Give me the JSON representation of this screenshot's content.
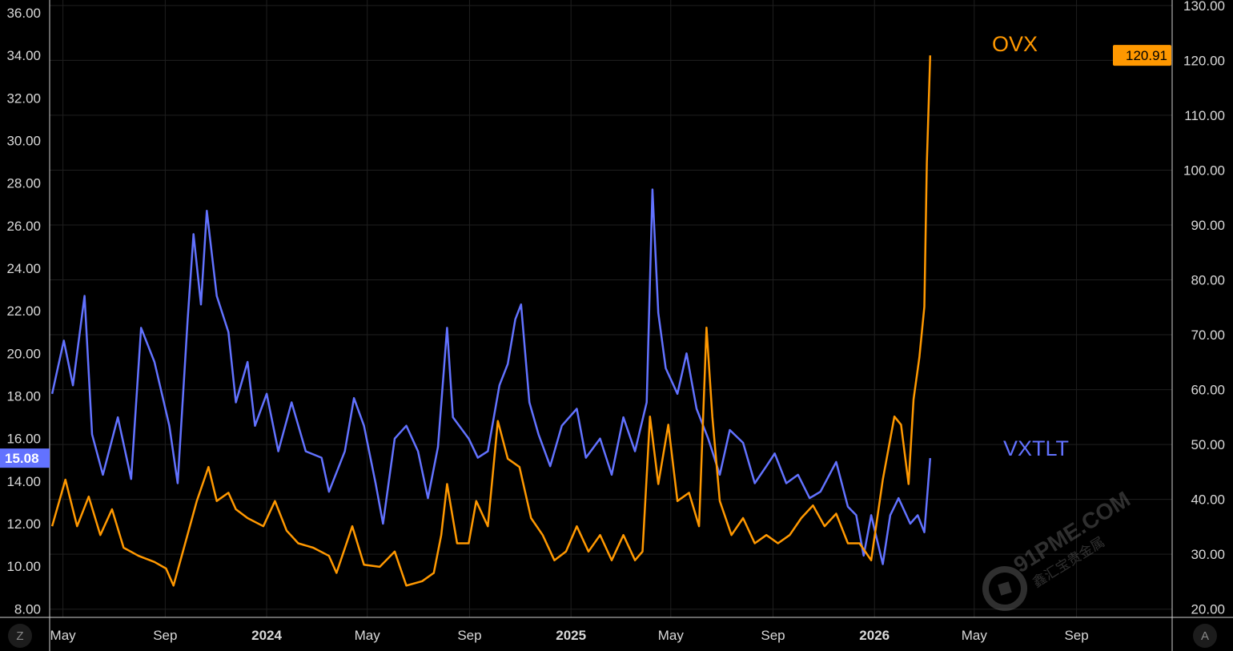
{
  "chart_data": {
    "type": "line",
    "title": "",
    "x_axis": {
      "type": "date",
      "tick_labels": [
        {
          "date": "2023-05-01",
          "label": "May"
        },
        {
          "date": "2023-09-01",
          "label": "Sep"
        },
        {
          "date": "2024-01-01",
          "label": "2024"
        },
        {
          "date": "2024-05-01",
          "label": "May"
        },
        {
          "date": "2024-09-01",
          "label": "Sep"
        },
        {
          "date": "2025-01-01",
          "label": "2025"
        },
        {
          "date": "2025-05-01",
          "label": "May"
        },
        {
          "date": "2025-09-01",
          "label": "Sep"
        },
        {
          "date": "2026-01-01",
          "label": "2026"
        },
        {
          "date": "2026-05-01",
          "label": "May"
        },
        {
          "date": "2026-09-01",
          "label": "Sep"
        }
      ],
      "range": [
        "2023-04-15",
        "2026-12-25"
      ]
    },
    "y_left": {
      "range": [
        7.6,
        36.6
      ],
      "ticks": [
        "8.00",
        "10.00",
        "12.00",
        "14.00",
        "16.00",
        "18.00",
        "20.00",
        "22.00",
        "24.00",
        "26.00",
        "28.00",
        "30.00",
        "32.00",
        "34.00",
        "36.00"
      ]
    },
    "y_right": {
      "range": [
        18.5,
        131
      ],
      "ticks": [
        "20.00",
        "30.00",
        "40.00",
        "50.00",
        "60.00",
        "70.00",
        "80.00",
        "90.00",
        "100.00",
        "110.00",
        "120.00",
        "130.00"
      ]
    },
    "grid": true,
    "series": [
      {
        "name": "VXTLT",
        "axis": "left",
        "color": "#6272ff",
        "last_value": "15.08",
        "points": [
          [
            "2023-04-18",
            18.1
          ],
          [
            "2023-05-02",
            20.6
          ],
          [
            "2023-05-13",
            18.5
          ],
          [
            "2023-05-27",
            22.7
          ],
          [
            "2023-06-05",
            16.2
          ],
          [
            "2023-06-18",
            14.3
          ],
          [
            "2023-07-06",
            17.0
          ],
          [
            "2023-07-22",
            14.1
          ],
          [
            "2023-08-03",
            21.2
          ],
          [
            "2023-08-19",
            19.6
          ],
          [
            "2023-09-06",
            16.6
          ],
          [
            "2023-09-16",
            13.9
          ],
          [
            "2023-09-28",
            21.6
          ],
          [
            "2023-10-05",
            25.6
          ],
          [
            "2023-10-14",
            22.3
          ],
          [
            "2023-10-21",
            26.7
          ],
          [
            "2023-11-02",
            22.7
          ],
          [
            "2023-11-16",
            21.0
          ],
          [
            "2023-11-25",
            17.7
          ],
          [
            "2023-12-09",
            19.6
          ],
          [
            "2023-12-18",
            16.6
          ],
          [
            "2024-01-01",
            18.1
          ],
          [
            "2024-01-15",
            15.4
          ],
          [
            "2024-01-31",
            17.7
          ],
          [
            "2024-02-17",
            15.4
          ],
          [
            "2024-03-07",
            15.1
          ],
          [
            "2024-03-16",
            13.5
          ],
          [
            "2024-04-04",
            15.4
          ],
          [
            "2024-04-15",
            17.9
          ],
          [
            "2024-04-27",
            16.6
          ],
          [
            "2024-05-11",
            13.9
          ],
          [
            "2024-05-20",
            12.0
          ],
          [
            "2024-06-03",
            16.0
          ],
          [
            "2024-06-17",
            16.6
          ],
          [
            "2024-07-01",
            15.4
          ],
          [
            "2024-07-13",
            13.2
          ],
          [
            "2024-07-25",
            15.6
          ],
          [
            "2024-08-05",
            21.2
          ],
          [
            "2024-08-12",
            17.0
          ],
          [
            "2024-08-31",
            16.0
          ],
          [
            "2024-09-11",
            15.1
          ],
          [
            "2024-09-23",
            15.4
          ],
          [
            "2024-10-07",
            18.5
          ],
          [
            "2024-10-17",
            19.5
          ],
          [
            "2024-10-26",
            21.6
          ],
          [
            "2024-11-02",
            22.3
          ],
          [
            "2024-11-12",
            17.7
          ],
          [
            "2024-11-23",
            16.2
          ],
          [
            "2024-12-07",
            14.7
          ],
          [
            "2024-12-21",
            16.6
          ],
          [
            "2025-01-08",
            17.4
          ],
          [
            "2025-01-19",
            15.1
          ],
          [
            "2025-02-05",
            16.0
          ],
          [
            "2025-02-19",
            14.3
          ],
          [
            "2025-03-05",
            17.0
          ],
          [
            "2025-03-19",
            15.4
          ],
          [
            "2025-04-02",
            17.7
          ],
          [
            "2025-04-09",
            27.7
          ],
          [
            "2025-04-16",
            21.9
          ],
          [
            "2025-04-25",
            19.3
          ],
          [
            "2025-05-09",
            18.1
          ],
          [
            "2025-05-20",
            20.0
          ],
          [
            "2025-06-01",
            17.4
          ],
          [
            "2025-06-15",
            16.0
          ],
          [
            "2025-06-29",
            14.3
          ],
          [
            "2025-07-11",
            16.4
          ],
          [
            "2025-07-27",
            15.8
          ],
          [
            "2025-08-10",
            13.9
          ],
          [
            "2025-08-24",
            14.7
          ],
          [
            "2025-09-03",
            15.3
          ],
          [
            "2025-09-17",
            13.9
          ],
          [
            "2025-10-01",
            14.3
          ],
          [
            "2025-10-15",
            13.2
          ],
          [
            "2025-10-28",
            13.5
          ],
          [
            "2025-11-16",
            14.9
          ],
          [
            "2025-11-30",
            12.8
          ],
          [
            "2025-12-10",
            12.4
          ],
          [
            "2025-12-19",
            10.5
          ],
          [
            "2025-12-28",
            12.4
          ],
          [
            "2026-01-11",
            10.1
          ],
          [
            "2026-01-20",
            12.4
          ],
          [
            "2026-01-30",
            13.2
          ],
          [
            "2026-02-13",
            12.0
          ],
          [
            "2026-02-22",
            12.4
          ],
          [
            "2026-03-02",
            11.6
          ],
          [
            "2026-03-09",
            15.08
          ]
        ]
      },
      {
        "name": "OVX",
        "axis": "right",
        "color": "#ff9800",
        "last_value": "120.91",
        "points": [
          [
            "2023-04-18",
            35.1
          ],
          [
            "2023-05-04",
            43.6
          ],
          [
            "2023-05-18",
            35.1
          ],
          [
            "2023-06-01",
            40.5
          ],
          [
            "2023-06-15",
            33.5
          ],
          [
            "2023-06-29",
            38.2
          ],
          [
            "2023-07-13",
            31.2
          ],
          [
            "2023-07-31",
            29.7
          ],
          [
            "2023-08-19",
            28.6
          ],
          [
            "2023-09-02",
            27.4
          ],
          [
            "2023-09-11",
            24.3
          ],
          [
            "2023-09-25",
            32.0
          ],
          [
            "2023-10-09",
            39.7
          ],
          [
            "2023-10-23",
            45.9
          ],
          [
            "2023-11-02",
            39.7
          ],
          [
            "2023-11-16",
            41.2
          ],
          [
            "2023-11-25",
            38.2
          ],
          [
            "2023-12-09",
            36.6
          ],
          [
            "2023-12-28",
            35.1
          ],
          [
            "2024-01-11",
            39.7
          ],
          [
            "2024-01-25",
            34.3
          ],
          [
            "2024-02-08",
            32.0
          ],
          [
            "2024-02-26",
            31.2
          ],
          [
            "2024-03-16",
            29.7
          ],
          [
            "2024-03-25",
            26.6
          ],
          [
            "2024-04-13",
            35.1
          ],
          [
            "2024-04-27",
            28.1
          ],
          [
            "2024-05-16",
            27.7
          ],
          [
            "2024-06-03",
            30.5
          ],
          [
            "2024-06-17",
            24.3
          ],
          [
            "2024-07-06",
            25.1
          ],
          [
            "2024-07-20",
            26.6
          ],
          [
            "2024-07-29",
            33.5
          ],
          [
            "2024-08-05",
            42.8
          ],
          [
            "2024-08-17",
            32.0
          ],
          [
            "2024-08-31",
            32.0
          ],
          [
            "2024-09-09",
            39.7
          ],
          [
            "2024-09-23",
            35.1
          ],
          [
            "2024-10-05",
            54.3
          ],
          [
            "2024-10-17",
            47.4
          ],
          [
            "2024-10-31",
            45.9
          ],
          [
            "2024-11-14",
            36.6
          ],
          [
            "2024-11-28",
            33.5
          ],
          [
            "2024-12-12",
            28.9
          ],
          [
            "2024-12-26",
            30.5
          ],
          [
            "2025-01-08",
            35.1
          ],
          [
            "2025-01-22",
            30.5
          ],
          [
            "2025-02-05",
            33.5
          ],
          [
            "2025-02-19",
            28.9
          ],
          [
            "2025-03-05",
            33.5
          ],
          [
            "2025-03-19",
            28.9
          ],
          [
            "2025-03-28",
            30.5
          ],
          [
            "2025-04-06",
            55.1
          ],
          [
            "2025-04-16",
            42.8
          ],
          [
            "2025-04-28",
            53.6
          ],
          [
            "2025-05-09",
            39.7
          ],
          [
            "2025-05-23",
            41.2
          ],
          [
            "2025-06-04",
            35.1
          ],
          [
            "2025-06-13",
            71.3
          ],
          [
            "2025-06-20",
            55.1
          ],
          [
            "2025-06-29",
            39.7
          ],
          [
            "2025-07-13",
            33.5
          ],
          [
            "2025-07-27",
            36.6
          ],
          [
            "2025-08-10",
            32.0
          ],
          [
            "2025-08-24",
            33.5
          ],
          [
            "2025-09-07",
            32.0
          ],
          [
            "2025-09-21",
            33.5
          ],
          [
            "2025-10-05",
            36.6
          ],
          [
            "2025-10-19",
            38.9
          ],
          [
            "2025-11-02",
            35.1
          ],
          [
            "2025-11-16",
            37.4
          ],
          [
            "2025-11-30",
            32.0
          ],
          [
            "2025-12-14",
            32.0
          ],
          [
            "2025-12-28",
            28.9
          ],
          [
            "2026-01-11",
            43.6
          ],
          [
            "2026-01-25",
            55.1
          ],
          [
            "2026-02-02",
            53.6
          ],
          [
            "2026-02-11",
            42.8
          ],
          [
            "2026-02-17",
            58.2
          ],
          [
            "2026-02-24",
            65.9
          ],
          [
            "2026-03-02",
            75.1
          ],
          [
            "2026-03-05",
            101.3
          ],
          [
            "2026-03-09",
            120.91
          ]
        ]
      }
    ]
  },
  "controls": {
    "left_button": "Z",
    "right_button": "A"
  },
  "watermark": {
    "text": "91PME.COM",
    "subtext": "鑫汇宝贵金属"
  }
}
